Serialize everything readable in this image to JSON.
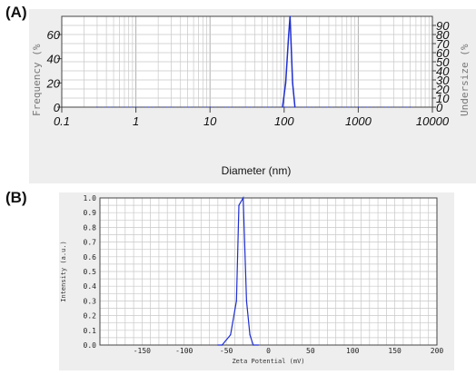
{
  "panels": {
    "a": "(A)",
    "b": "(B)"
  },
  "colors": {
    "series": "#1f2fd0",
    "grid": "#c8c8c8",
    "frame": "#444444",
    "bg_a": "#eeeeee"
  },
  "chart_data": [
    {
      "type": "line",
      "xscale": "log",
      "xlim": [
        0.1,
        10000
      ],
      "xlabel": "Diameter (nm)",
      "ylabel": "Frequency (%",
      "ylabel_right": "Undersize (%",
      "ylim": [
        0,
        75
      ],
      "ylim_right": [
        0,
        100
      ],
      "x_ticks": [
        "0.1",
        "1",
        "10",
        "100",
        "1000",
        "10000"
      ],
      "y_ticks": [
        "0",
        "20",
        "40",
        "60"
      ],
      "y_ticks_right": [
        "0",
        "10",
        "20",
        "30",
        "40",
        "50",
        "60",
        "70",
        "80",
        "90"
      ],
      "grid": true,
      "series": [
        {
          "style": "solid",
          "x": [
            95,
            105,
            115,
            120,
            130,
            140
          ],
          "y": [
            0,
            20,
            60,
            75,
            20,
            0
          ]
        },
        {
          "style": "dotted",
          "x": [
            0.3,
            1,
            10,
            100,
            1000,
            5000
          ],
          "y": [
            0,
            0,
            0,
            0,
            0,
            0
          ]
        }
      ]
    },
    {
      "type": "line",
      "xlim": [
        -200,
        200
      ],
      "ylim": [
        0,
        1.0
      ],
      "xlabel": "Zeta Potential (mV)",
      "ylabel": "Intensity (a.u.)",
      "x_ticks": [
        "-150",
        "-100",
        "-50",
        "0",
        "50",
        "100",
        "150",
        "200"
      ],
      "y_ticks": [
        "0.0",
        "0.1",
        "0.2",
        "0.3",
        "0.4",
        "0.5",
        "0.6",
        "0.7",
        "0.8",
        "0.9",
        "1.0"
      ],
      "grid": true,
      "series": [
        {
          "x": [
            -60,
            -55,
            -45,
            -38,
            -35,
            -30,
            -26,
            -22,
            -18,
            -12
          ],
          "y": [
            0,
            0,
            0.07,
            0.3,
            0.95,
            1.0,
            0.3,
            0.07,
            0,
            0
          ]
        }
      ]
    }
  ]
}
